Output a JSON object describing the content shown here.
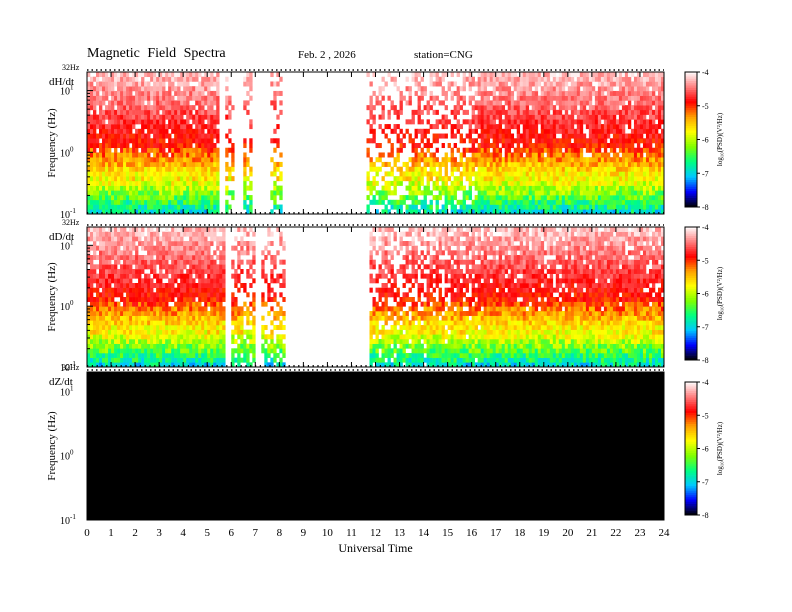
{
  "header": {
    "title": "Magnetic Field Spectra",
    "date": "Feb. 2 , 2026",
    "station": "station=CNG"
  },
  "chart_data": {
    "type": "heatmap",
    "xlabel": "Universal Time",
    "x_ticks": [
      "0",
      "1",
      "2",
      "3",
      "4",
      "5",
      "6",
      "7",
      "8",
      "9",
      "10",
      "11",
      "12",
      "13",
      "14",
      "15",
      "16",
      "17",
      "18",
      "19",
      "20",
      "21",
      "22",
      "23",
      "24"
    ],
    "xlim": [
      0,
      24
    ],
    "colors": {
      "no_data": "#000000",
      "scale": [
        "#000000",
        "#0000ff",
        "#00c8ff",
        "#00ff80",
        "#80ff00",
        "#ffff00",
        "#ffa000",
        "#ff0000",
        "#ff8080",
        "#ffffff"
      ]
    },
    "panels": [
      {
        "component": "dH/dt",
        "nyquist_label": "32Hz",
        "ylabel": "Frequency (Hz)",
        "y_scale": "log",
        "ylim": [
          0.1,
          20
        ],
        "y_ticks": [
          {
            "base": "10",
            "exp": "-1"
          },
          {
            "base": "10",
            "exp": "0"
          },
          {
            "base": "10",
            "exp": "1"
          }
        ],
        "colorbar": {
          "label": "log₁₀(PSD)(V²/Hz)",
          "range": [
            -8,
            -4
          ],
          "ticks": [
            "-4",
            "-5",
            "-6",
            "-7",
            "-8"
          ]
        },
        "activity": [
          {
            "hours": [
              0,
              5.5
            ],
            "level": 0.9
          },
          {
            "hours": [
              5.8,
              6.1
            ],
            "level": 0.5
          },
          {
            "hours": [
              6.5,
              6.9
            ],
            "level": 0.55
          },
          {
            "hours": [
              7.6,
              8.1
            ],
            "level": 0.45
          },
          {
            "hours": [
              11.6,
              13.5
            ],
            "level": 0.45
          },
          {
            "hours": [
              13.5,
              16.3
            ],
            "level": 0.6
          },
          {
            "hours": [
              16.3,
              24
            ],
            "level": 0.95
          }
        ],
        "has_data": true
      },
      {
        "component": "dD/dt",
        "nyquist_label": "32Hz",
        "ylabel": "Frequency (Hz)",
        "y_scale": "log",
        "ylim": [
          0.1,
          20
        ],
        "y_ticks": [
          {
            "base": "10",
            "exp": "-1"
          },
          {
            "base": "10",
            "exp": "0"
          },
          {
            "base": "10",
            "exp": "1"
          }
        ],
        "colorbar": {
          "label": "log₁₀(PSD)(V²/Hz)",
          "range": [
            -8,
            -4
          ],
          "ticks": [
            "-4",
            "-5",
            "-6",
            "-7",
            "-8"
          ]
        },
        "activity": [
          {
            "hours": [
              0,
              5.8
            ],
            "level": 0.95
          },
          {
            "hours": [
              6.0,
              7.0
            ],
            "level": 0.6
          },
          {
            "hours": [
              7.3,
              8.2
            ],
            "level": 0.5
          },
          {
            "hours": [
              11.7,
              13.5
            ],
            "level": 0.65
          },
          {
            "hours": [
              13.5,
              16.5
            ],
            "level": 0.8
          },
          {
            "hours": [
              16.5,
              24
            ],
            "level": 1.0
          }
        ],
        "has_data": true
      },
      {
        "component": "dZ/dt",
        "nyquist_label": "32Hz",
        "ylabel": "Frequency (Hz)",
        "y_scale": "log",
        "ylim": [
          0.1,
          20
        ],
        "y_ticks": [
          {
            "base": "10",
            "exp": "-1"
          },
          {
            "base": "10",
            "exp": "0"
          },
          {
            "base": "10",
            "exp": "1"
          }
        ],
        "colorbar": {
          "label": "log₁₀(PSD)(V²/Hz)",
          "range": [
            -8,
            -4
          ],
          "ticks": [
            "-4",
            "-5",
            "-6",
            "-7",
            "-8"
          ]
        },
        "activity": [],
        "has_data": false
      }
    ]
  }
}
